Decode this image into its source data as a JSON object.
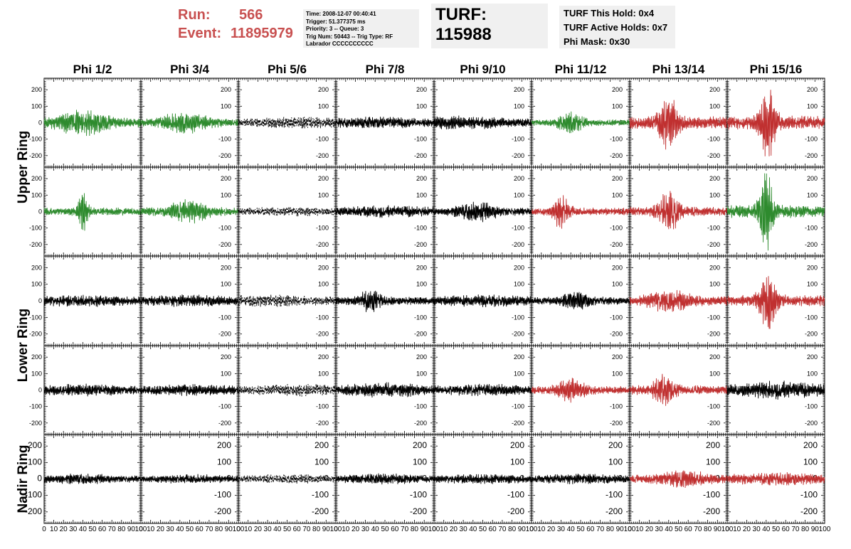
{
  "header": {
    "run_label": "Run:",
    "run_value": "566",
    "event_label": "Event:",
    "event_value": "11895979",
    "info_lines": [
      "Time: 2008-12-07 00:40:41",
      "Trigger: 51.377375 ms",
      "Priority: 3 -- Queue: 3",
      "Trig Num: 50443 -- Trig Type: RF",
      "Labrador CCCCCCCCCC"
    ],
    "turf_title": "TURF: 115988",
    "turf_lines": [
      "TURF This Hold: 0x4",
      "TURF Active Holds: 0x7",
      "Phi Mask: 0x30"
    ]
  },
  "colors": {
    "black": "#000000",
    "green": "#2e8b2e",
    "red": "#c03030",
    "dashed": "#000000"
  },
  "chart_data": {
    "type": "line",
    "column_titles": [
      "Phi 1/2",
      "Phi 3/4",
      "Phi 5/6",
      "Phi 7/8",
      "Phi 9/10",
      "Phi 11/12",
      "Phi 13/14",
      "Phi 15/16"
    ],
    "row_labels": [
      {
        "text": "Upper Ring",
        "rows": [
          0,
          1
        ]
      },
      {
        "text": "Lower Ring",
        "rows": [
          2,
          3
        ]
      },
      {
        "text": "Nadir Ring",
        "rows": [
          4,
          4
        ]
      }
    ],
    "xlim": [
      0,
      100
    ],
    "ylim": [
      -270,
      270
    ],
    "yticks": [
      -200,
      -100,
      0,
      100,
      200
    ],
    "xticks": [
      0,
      10,
      20,
      30,
      40,
      50,
      60,
      70,
      80,
      90,
      100
    ],
    "panels": [
      [
        {
          "color": "green",
          "amp": 90,
          "peak": 40,
          "width": 25,
          "noise": 30,
          "style": "solid"
        },
        {
          "color": "green",
          "amp": 80,
          "peak": 45,
          "width": 22,
          "noise": 25,
          "style": "solid"
        },
        {
          "color": "dashed",
          "amp": 40,
          "peak": 60,
          "width": 40,
          "noise": 25,
          "style": "dashed"
        },
        {
          "color": "black",
          "amp": 40,
          "peak": 40,
          "width": 40,
          "noise": 25,
          "style": "solid"
        },
        {
          "color": "black",
          "amp": 45,
          "peak": 30,
          "width": 40,
          "noise": 25,
          "style": "solid"
        },
        {
          "color": "green",
          "amp": 80,
          "peak": 40,
          "width": 12,
          "noise": 20,
          "style": "solid"
        },
        {
          "color": "red",
          "amp": 190,
          "peak": 40,
          "width": 10,
          "noise": 40,
          "style": "solid"
        },
        {
          "color": "red",
          "amp": 250,
          "peak": 42,
          "width": 8,
          "noise": 45,
          "style": "solid"
        }
      ],
      [
        {
          "color": "green",
          "amp": 140,
          "peak": 40,
          "width": 5,
          "noise": 25,
          "style": "solid"
        },
        {
          "color": "green",
          "amp": 80,
          "peak": 48,
          "width": 20,
          "noise": 25,
          "style": "solid"
        },
        {
          "color": "dashed",
          "amp": 30,
          "peak": 50,
          "width": 40,
          "noise": 20,
          "style": "dashed"
        },
        {
          "color": "black",
          "amp": 40,
          "peak": 50,
          "width": 40,
          "noise": 25,
          "style": "solid"
        },
        {
          "color": "black",
          "amp": 70,
          "peak": 45,
          "width": 20,
          "noise": 25,
          "style": "solid"
        },
        {
          "color": "red",
          "amp": 120,
          "peak": 30,
          "width": 8,
          "noise": 25,
          "style": "solid"
        },
        {
          "color": "red",
          "amp": 150,
          "peak": 40,
          "width": 10,
          "noise": 30,
          "style": "solid"
        },
        {
          "color": "green",
          "amp": 260,
          "peak": 40,
          "width": 7,
          "noise": 40,
          "style": "solid"
        }
      ],
      [
        {
          "color": "black",
          "amp": 40,
          "peak": 40,
          "width": 40,
          "noise": 25,
          "style": "solid"
        },
        {
          "color": "black",
          "amp": 40,
          "peak": 50,
          "width": 40,
          "noise": 25,
          "style": "solid"
        },
        {
          "color": "dashed",
          "amp": 40,
          "peak": 30,
          "width": 40,
          "noise": 25,
          "style": "dashed"
        },
        {
          "color": "black",
          "amp": 80,
          "peak": 35,
          "width": 12,
          "noise": 25,
          "style": "solid"
        },
        {
          "color": "black",
          "amp": 40,
          "peak": 50,
          "width": 40,
          "noise": 25,
          "style": "solid"
        },
        {
          "color": "black",
          "amp": 70,
          "peak": 45,
          "width": 12,
          "noise": 25,
          "style": "solid"
        },
        {
          "color": "red",
          "amp": 80,
          "peak": 40,
          "width": 20,
          "noise": 30,
          "style": "solid"
        },
        {
          "color": "red",
          "amp": 190,
          "peak": 42,
          "width": 9,
          "noise": 35,
          "style": "solid"
        }
      ],
      [
        {
          "color": "black",
          "amp": 40,
          "peak": 40,
          "width": 40,
          "noise": 25,
          "style": "solid"
        },
        {
          "color": "black",
          "amp": 40,
          "peak": 50,
          "width": 40,
          "noise": 25,
          "style": "solid"
        },
        {
          "color": "dashed",
          "amp": 40,
          "peak": 60,
          "width": 40,
          "noise": 25,
          "style": "dashed"
        },
        {
          "color": "black",
          "amp": 50,
          "peak": 50,
          "width": 40,
          "noise": 25,
          "style": "solid"
        },
        {
          "color": "black",
          "amp": 40,
          "peak": 50,
          "width": 40,
          "noise": 25,
          "style": "solid"
        },
        {
          "color": "red",
          "amp": 80,
          "peak": 40,
          "width": 14,
          "noise": 25,
          "style": "solid"
        },
        {
          "color": "red",
          "amp": 120,
          "peak": 35,
          "width": 10,
          "noise": 30,
          "style": "solid"
        },
        {
          "color": "black",
          "amp": 60,
          "peak": 50,
          "width": 40,
          "noise": 30,
          "style": "solid"
        }
      ],
      [
        {
          "color": "black",
          "amp": 35,
          "peak": 40,
          "width": 40,
          "noise": 20,
          "style": "solid"
        },
        {
          "color": "black",
          "amp": 30,
          "peak": 50,
          "width": 40,
          "noise": 20,
          "style": "solid"
        },
        {
          "color": "dashed",
          "amp": 30,
          "peak": 50,
          "width": 40,
          "noise": 20,
          "style": "dashed"
        },
        {
          "color": "black",
          "amp": 35,
          "peak": 50,
          "width": 40,
          "noise": 20,
          "style": "solid"
        },
        {
          "color": "black",
          "amp": 35,
          "peak": 50,
          "width": 40,
          "noise": 20,
          "style": "solid"
        },
        {
          "color": "black",
          "amp": 35,
          "peak": 50,
          "width": 40,
          "noise": 20,
          "style": "solid"
        },
        {
          "color": "red",
          "amp": 60,
          "peak": 55,
          "width": 25,
          "noise": 25,
          "style": "solid"
        },
        {
          "color": "red",
          "amp": 45,
          "peak": 50,
          "width": 40,
          "noise": 25,
          "style": "solid"
        }
      ]
    ]
  }
}
